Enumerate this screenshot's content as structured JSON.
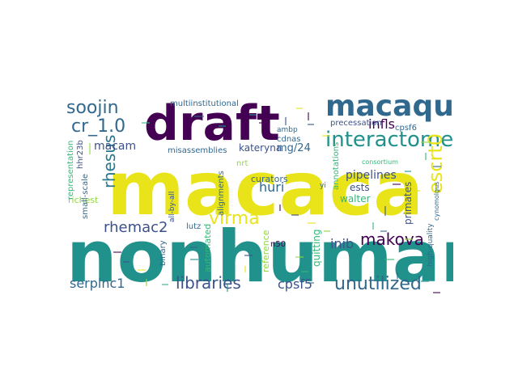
{
  "palette": {
    "purple": "#440154",
    "indigo": "#3b528b",
    "blue": "#31688e",
    "teal": "#21918c",
    "green": "#35b779",
    "lime": "#90d743",
    "yellow": "#e8e419",
    "bg": "#ffffff"
  },
  "words": [
    {
      "id": "nonhuman",
      "text": "nonhuman",
      "color": "#21918c"
    },
    {
      "id": "macaca",
      "text": "macaca",
      "color": "#e8e419"
    },
    {
      "id": "draft",
      "text": "draft",
      "color": "#440154"
    },
    {
      "id": "macaque",
      "text": "macaque",
      "color": "#31688e"
    },
    {
      "id": "interactome",
      "text": "interactome",
      "color": "#21918c"
    },
    {
      "id": "soojin",
      "text": "soojin",
      "color": "#31688e"
    },
    {
      "id": "cr_1_0",
      "text": "cr_1.0",
      "color": "#31688e"
    },
    {
      "id": "rhesus",
      "text": "rhesus",
      "color": "#2a788e"
    },
    {
      "id": "escrt0",
      "text": "escrt0",
      "color": "#e8e419"
    },
    {
      "id": "unutilized",
      "text": "unutilized",
      "color": "#31688e"
    },
    {
      "id": "libraries",
      "text": "libraries",
      "color": "#3b528b"
    },
    {
      "id": "virma",
      "text": "virma",
      "color": "#e8e419"
    },
    {
      "id": "makova",
      "text": "makova",
      "color": "#440154"
    },
    {
      "id": "rhemac2",
      "text": "rhemac2",
      "color": "#3b528b"
    },
    {
      "id": "huri",
      "text": "huri",
      "color": "#31688e"
    },
    {
      "id": "serpinc1",
      "text": "serpinc1",
      "color": "#31688e"
    },
    {
      "id": "cpsf5",
      "text": "cpsf5",
      "color": "#3b528b"
    },
    {
      "id": "inib",
      "text": "inib",
      "color": "#3b528b"
    },
    {
      "id": "infls",
      "text": "infls",
      "color": "#440154"
    },
    {
      "id": "macam",
      "text": "macam",
      "color": "#3b528b"
    },
    {
      "id": "mg24",
      "text": "mg/24",
      "color": "#31688e"
    },
    {
      "id": "kateryna",
      "text": "kateryna",
      "color": "#3b528b"
    },
    {
      "id": "pipelines",
      "text": "pipelines",
      "color": "#3b528b"
    },
    {
      "id": "ests",
      "text": "ests",
      "color": "#3b528b"
    },
    {
      "id": "walter",
      "text": "walter",
      "color": "#35b779"
    },
    {
      "id": "primates",
      "text": "primates",
      "color": "#3b528b"
    },
    {
      "id": "quitting",
      "text": "quitting",
      "color": "#35b779"
    },
    {
      "id": "reference",
      "text": "reference",
      "color": "#90d743"
    },
    {
      "id": "automated",
      "text": "automated",
      "color": "#35b779"
    },
    {
      "id": "alignments",
      "text": "alignments",
      "color": "#31688e"
    },
    {
      "id": "binary",
      "text": "binary",
      "color": "#31688e"
    },
    {
      "id": "lutz",
      "text": "lutz",
      "color": "#31688e"
    },
    {
      "id": "n50",
      "text": "n50",
      "color": "#440154"
    },
    {
      "id": "richest",
      "text": "richest",
      "color": "#90d743"
    },
    {
      "id": "small_scale",
      "text": "small-scale",
      "color": "#31688e"
    },
    {
      "id": "multiinstitutional",
      "text": "multiinstitutional",
      "color": "#31688e"
    },
    {
      "id": "misassemblies",
      "text": "misassemblies",
      "color": "#31688e"
    },
    {
      "id": "precessation",
      "text": "precessation",
      "color": "#3b528b"
    },
    {
      "id": "cpsf6",
      "text": "cpsf6",
      "color": "#31688e"
    },
    {
      "id": "hhr23b",
      "text": "hhr23b",
      "color": "#3b528b"
    },
    {
      "id": "representation",
      "text": "representation",
      "color": "#35b779"
    },
    {
      "id": "curators",
      "text": "curators",
      "color": "#31688e"
    },
    {
      "id": "annotations",
      "text": "annotations",
      "color": "#35b779"
    },
    {
      "id": "consortium",
      "text": "consortium",
      "color": "#35b779"
    },
    {
      "id": "high_quality",
      "text": "high-quality",
      "color": "#31688e"
    },
    {
      "id": "cynomolgus",
      "text": "cynomolgus",
      "color": "#31688e"
    },
    {
      "id": "ambp",
      "text": "ambp",
      "color": "#31688e"
    },
    {
      "id": "nrt",
      "text": "nrt",
      "color": "#90d743"
    },
    {
      "id": "cdnas",
      "text": "cdnas",
      "color": "#31688e"
    },
    {
      "id": "all_by_all",
      "text": "all-by-all",
      "color": "#3b528b"
    },
    {
      "id": "yi",
      "text": "yi",
      "color": "#31688e"
    }
  ],
  "filler_colors": [
    "#90d743",
    "#35b779",
    "#31688e",
    "#21918c",
    "#440154",
    "#3b528b",
    "#e8e419"
  ]
}
